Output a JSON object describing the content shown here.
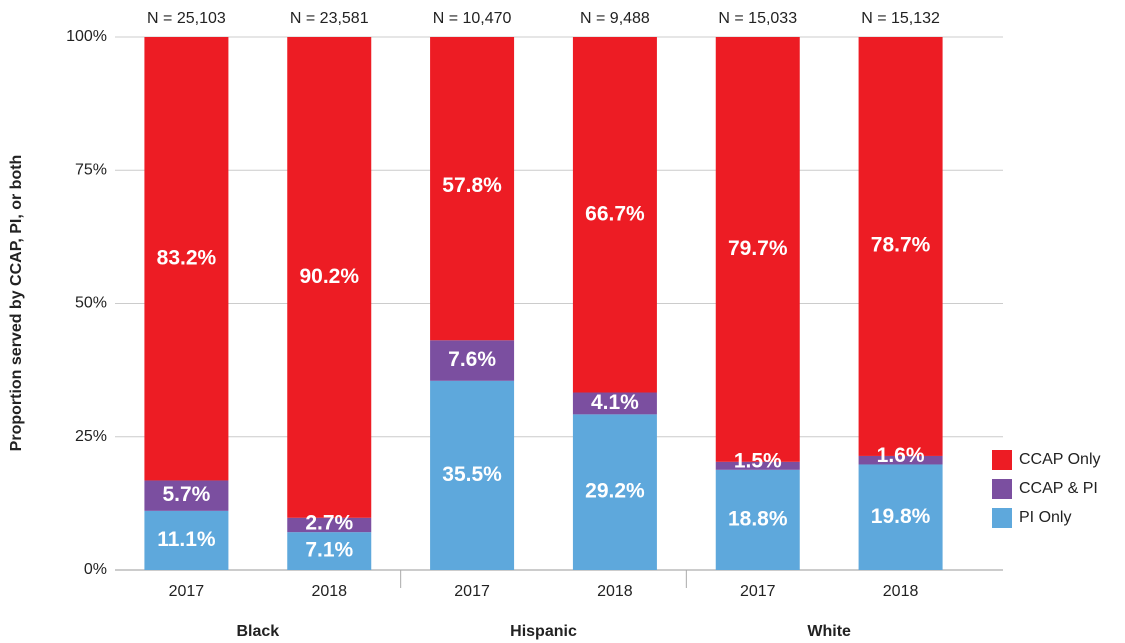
{
  "chart_data": {
    "type": "stacked_bar",
    "y_label": "Proportion served by CCAP, PI, or both",
    "categories": [
      "2017",
      "2018",
      "2017",
      "2018",
      "2017",
      "2018"
    ],
    "groups": [
      "Black",
      "Hispanic",
      "White"
    ],
    "annotations": [
      "N = 25,103",
      "N = 23,581",
      "N = 10,470",
      "N = 9,488",
      "N = 15,033",
      "N = 15,132"
    ],
    "series": [
      {
        "name": "PI Only",
        "color": "#5ea8dc",
        "values": [
          11.1,
          7.1,
          35.5,
          29.2,
          18.8,
          19.8
        ],
        "value_labels": [
          "11.1%",
          "7.1%",
          "35.5%",
          "29.2%",
          "18.8%",
          "19.8%"
        ]
      },
      {
        "name": "CCAP & PI",
        "color": "#7b4fa0",
        "values": [
          5.7,
          2.7,
          7.6,
          4.1,
          1.5,
          1.6
        ],
        "value_labels": [
          "5.7%",
          "2.7%",
          "7.6%",
          "4.1%",
          "1.5%",
          "1.6%"
        ]
      },
      {
        "name": "CCAP Only",
        "color": "#ed1c24",
        "values": [
          83.2,
          90.2,
          57.8,
          66.7,
          79.7,
          78.7
        ],
        "value_labels": [
          "83.2%",
          "90.2%",
          "57.8%",
          "66.7%",
          "79.7%",
          "78.7%"
        ]
      }
    ],
    "ylim": [
      0,
      100
    ],
    "yticks": [
      {
        "value": 0,
        "label": "0%"
      },
      {
        "value": 25,
        "label": "25%"
      },
      {
        "value": 50,
        "label": "50%"
      },
      {
        "value": 75,
        "label": "75%"
      },
      {
        "value": 100,
        "label": "100%"
      }
    ],
    "grid": true,
    "legend": "right"
  }
}
